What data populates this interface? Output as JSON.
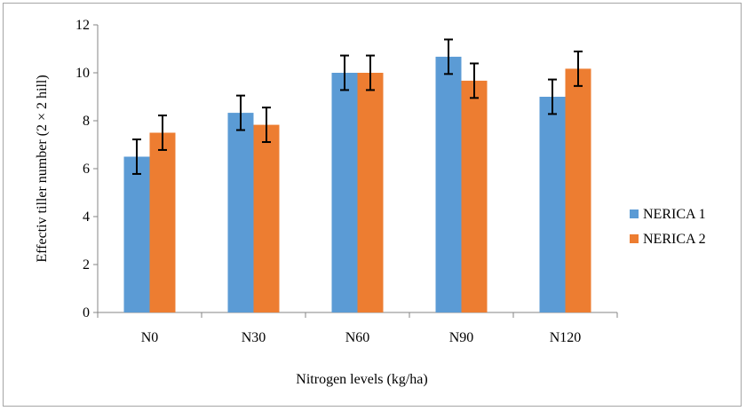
{
  "chart_data": {
    "type": "bar",
    "categories": [
      "N0",
      "N30",
      "N60",
      "N90",
      "N120"
    ],
    "series": [
      {
        "name": "NERICA 1",
        "values": [
          6.5,
          8.33,
          10.0,
          10.67,
          9.0
        ],
        "errors": [
          0.72,
          0.72,
          0.72,
          0.72,
          0.72
        ],
        "color": "#5b9bd5"
      },
      {
        "name": "NERICA 2",
        "values": [
          7.5,
          7.83,
          10.0,
          9.67,
          10.17
        ],
        "errors": [
          0.72,
          0.72,
          0.72,
          0.72,
          0.72
        ],
        "color": "#ed7d31"
      }
    ],
    "xlabel": "Nitrogen levels (kg/ha)",
    "ylabel": "Effectiv tiller number (2 × 2 hill)",
    "ylim": [
      0,
      12
    ],
    "yticks": [
      "0",
      "2",
      "4",
      "6",
      "8",
      "10",
      "12"
    ],
    "grid": false,
    "legend_position": "right"
  }
}
